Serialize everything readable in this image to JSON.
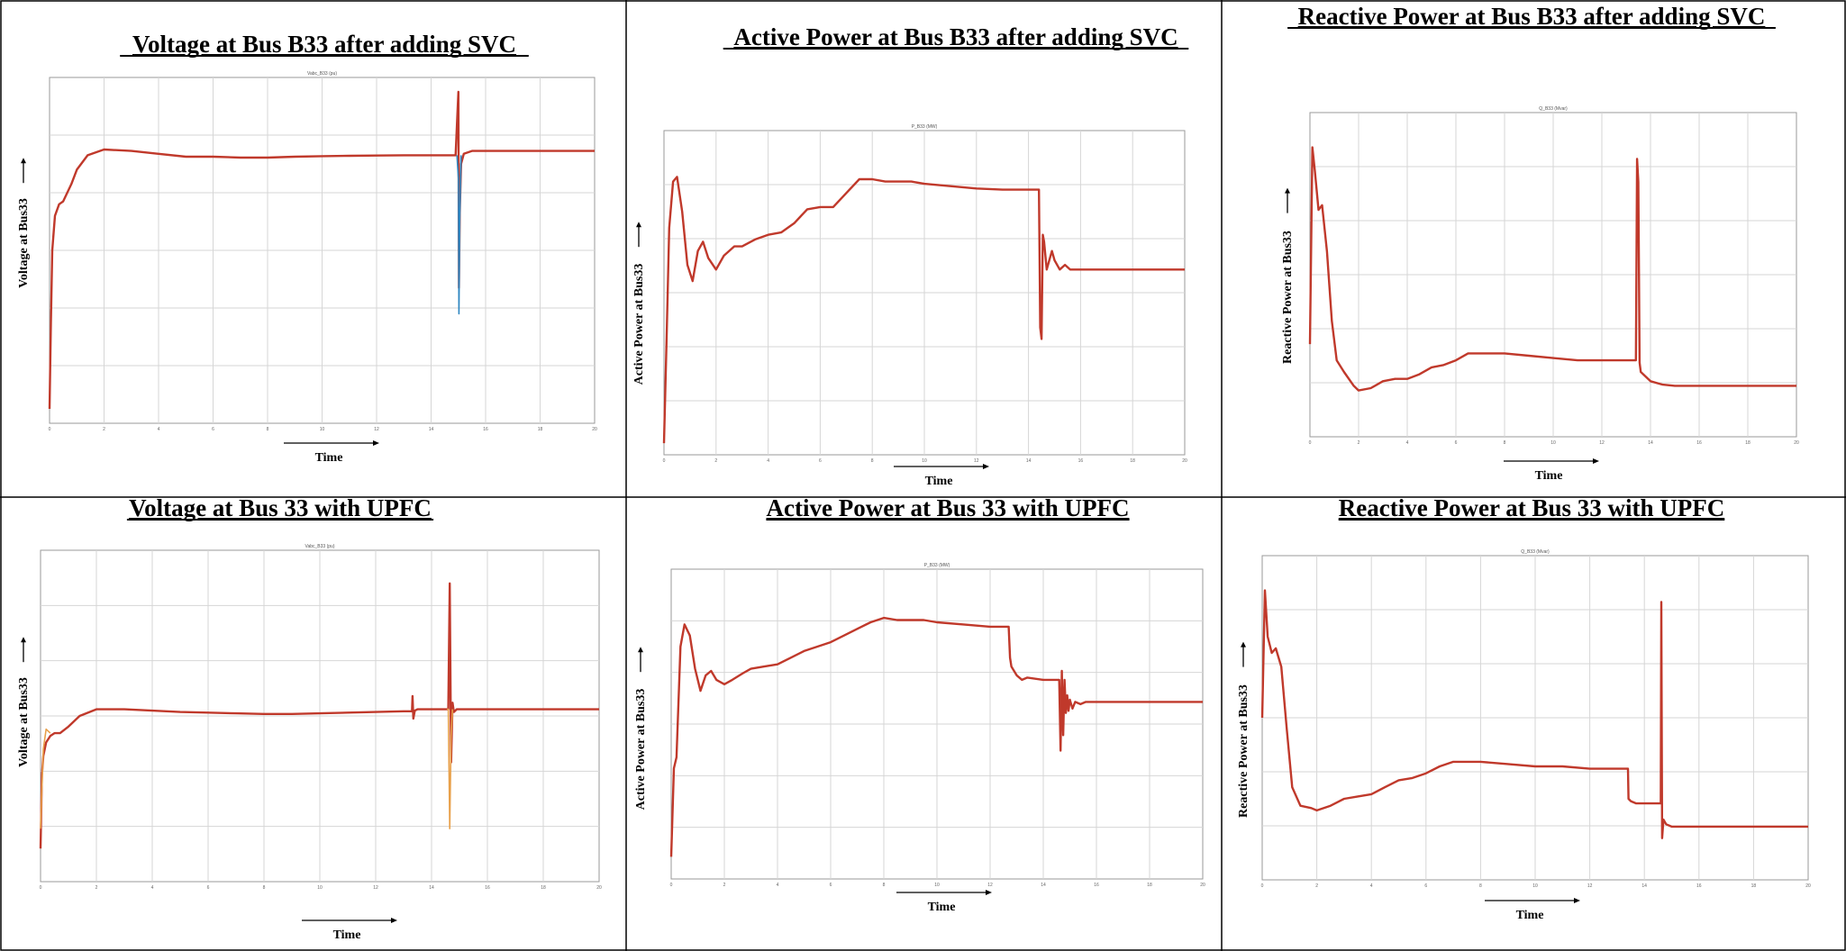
{
  "chart_data": [
    {
      "type": "line",
      "title": "Voltage at Bus B33  after adding SVC",
      "plot_tag": "Vabc_B33 (pu)",
      "xlabel": "Time",
      "ylabel": "Voltage at Bus33",
      "xlim": [
        0,
        20
      ],
      "ylim": [
        0,
        1.2
      ],
      "x_ticks": [
        "0",
        "2",
        "4",
        "6",
        "8",
        "10",
        "12",
        "14",
        "16",
        "18",
        "20"
      ],
      "grid": true,
      "series": [
        {
          "color": "#c0392b",
          "x": [
            0,
            0.05,
            0.1,
            0.2,
            0.35,
            0.5,
            0.8,
            1.0,
            1.4,
            2.0,
            3.0,
            4.0,
            5.0,
            6.0,
            7.0,
            8.0,
            9.0,
            10.0,
            11.0,
            12.0,
            13.0,
            14.0,
            14.9,
            15.0,
            15.02,
            15.05,
            15.1,
            15.2,
            15.5,
            16.0,
            17.0,
            18.0,
            19.0,
            20.0
          ],
          "y": [
            0.05,
            0.35,
            0.6,
            0.72,
            0.76,
            0.77,
            0.83,
            0.88,
            0.93,
            0.95,
            0.945,
            0.935,
            0.925,
            0.925,
            0.922,
            0.922,
            0.925,
            0.927,
            0.928,
            0.929,
            0.93,
            0.93,
            0.93,
            1.15,
            0.47,
            0.73,
            0.9,
            0.935,
            0.945,
            0.945,
            0.945,
            0.945,
            0.945,
            0.945
          ]
        },
        {
          "color": "#2e86c1",
          "x": [
            14.95,
            15.0,
            15.02,
            15.05,
            15.1
          ],
          "y": [
            0.93,
            0.85,
            0.38,
            0.7,
            0.93
          ]
        }
      ]
    },
    {
      "type": "line",
      "title": "Active Power at Bus B33  after adding SVC",
      "plot_tag": "P_B33 (MW)",
      "xlabel": "Time",
      "ylabel": "Active Power at Bus33",
      "xlim": [
        0,
        20
      ],
      "ylim": [
        -0.2,
        1.2
      ],
      "x_ticks": [
        "0",
        "2",
        "4",
        "6",
        "8",
        "10",
        "12",
        "14",
        "16",
        "18",
        "20"
      ],
      "grid": true,
      "series": [
        {
          "color": "#c0392b",
          "x": [
            0,
            0.1,
            0.2,
            0.35,
            0.5,
            0.7,
            0.9,
            1.1,
            1.3,
            1.5,
            1.7,
            2.0,
            2.3,
            2.7,
            3.0,
            3.5,
            4.0,
            4.5,
            5.0,
            5.5,
            6.0,
            6.5,
            7.0,
            7.5,
            8.0,
            8.5,
            9.0,
            9.5,
            10.0,
            11.0,
            12.0,
            13.0,
            14.0,
            14.4,
            14.45,
            14.5,
            14.55,
            14.6,
            14.7,
            14.8,
            14.9,
            15.0,
            15.2,
            15.4,
            15.6,
            16.0,
            17.0,
            18.0,
            19.0,
            20.0
          ],
          "y": [
            -0.15,
            0.3,
            0.78,
            0.98,
            1.0,
            0.85,
            0.62,
            0.55,
            0.68,
            0.72,
            0.65,
            0.6,
            0.66,
            0.7,
            0.7,
            0.73,
            0.75,
            0.76,
            0.8,
            0.86,
            0.87,
            0.87,
            0.93,
            0.99,
            0.99,
            0.98,
            0.98,
            0.98,
            0.97,
            0.96,
            0.95,
            0.945,
            0.945,
            0.945,
            0.35,
            0.3,
            0.75,
            0.72,
            0.6,
            0.64,
            0.68,
            0.64,
            0.6,
            0.62,
            0.6,
            0.6,
            0.6,
            0.6,
            0.6,
            0.6
          ]
        }
      ]
    },
    {
      "type": "line",
      "title": "Reactive Power at Bus B33  after adding SVC",
      "plot_tag": "Q_B33 (Mvar)",
      "xlabel": "Time",
      "ylabel": "Reactive Power at Bus33",
      "xlim": [
        0,
        20
      ],
      "ylim": [
        -0.2,
        1.2
      ],
      "x_ticks": [
        "0",
        "2",
        "4",
        "6",
        "8",
        "10",
        "12",
        "14",
        "16",
        "18",
        "20"
      ],
      "grid": true,
      "series": [
        {
          "color": "#c0392b",
          "x": [
            0,
            0.1,
            0.2,
            0.35,
            0.5,
            0.7,
            0.9,
            1.1,
            1.4,
            1.8,
            2.0,
            2.5,
            3.0,
            3.5,
            4.0,
            4.5,
            5.0,
            5.5,
            6.0,
            6.5,
            7.0,
            8.0,
            9.0,
            10.0,
            11.0,
            12.0,
            13.0,
            13.4,
            13.45,
            13.5,
            13.55,
            13.6,
            13.8,
            14.0,
            14.5,
            15.0,
            16.0,
            17.0,
            18.0,
            19.0,
            20.0
          ],
          "y": [
            0.2,
            1.05,
            0.95,
            0.78,
            0.8,
            0.6,
            0.3,
            0.13,
            0.08,
            0.02,
            0.0,
            0.01,
            0.04,
            0.05,
            0.05,
            0.07,
            0.1,
            0.11,
            0.13,
            0.16,
            0.16,
            0.16,
            0.15,
            0.14,
            0.13,
            0.13,
            0.13,
            0.13,
            1.0,
            0.9,
            0.12,
            0.08,
            0.06,
            0.04,
            0.025,
            0.02,
            0.02,
            0.02,
            0.02,
            0.02,
            0.02
          ]
        }
      ]
    },
    {
      "type": "line",
      "title": "Voltage at Bus 33 with UPFC",
      "plot_tag": "Vabc_B33 (pu)",
      "xlabel": "Time",
      "ylabel": "Voltage at Bus33",
      "xlim": [
        0,
        20
      ],
      "ylim": [
        0,
        2.5
      ],
      "x_ticks": [
        "0",
        "2",
        "4",
        "6",
        "8",
        "10",
        "12",
        "14",
        "16",
        "18",
        "20"
      ],
      "grid": true,
      "series": [
        {
          "color": "#c0392b",
          "x": [
            0,
            0.05,
            0.1,
            0.2,
            0.35,
            0.5,
            0.7,
            1.0,
            1.4,
            2.0,
            3.0,
            4.0,
            5.0,
            6.0,
            7.0,
            8.0,
            9.0,
            10.0,
            11.0,
            12.0,
            13.0,
            13.3,
            13.32,
            13.35,
            13.4,
            13.5,
            14.0,
            14.6,
            14.65,
            14.7,
            14.75,
            14.8,
            14.9,
            15.0,
            15.5,
            16.0,
            17.0,
            18.0,
            19.0,
            20.0
          ],
          "y": [
            0.25,
            0.8,
            0.95,
            1.05,
            1.1,
            1.12,
            1.12,
            1.17,
            1.25,
            1.3,
            1.3,
            1.29,
            1.28,
            1.275,
            1.27,
            1.265,
            1.265,
            1.27,
            1.275,
            1.28,
            1.285,
            1.285,
            1.4,
            1.23,
            1.29,
            1.3,
            1.3,
            1.3,
            2.25,
            0.9,
            1.35,
            1.28,
            1.3,
            1.3,
            1.3,
            1.3,
            1.3,
            1.3,
            1.3,
            1.3
          ]
        },
        {
          "color": "#e8a04a",
          "x": [
            0,
            0.05,
            0.1,
            0.2,
            0.35
          ],
          "y": [
            0.4,
            0.7,
            1.0,
            1.15,
            1.12
          ]
        },
        {
          "color": "#e8a04a",
          "x": [
            14.55,
            14.6,
            14.65,
            14.7,
            14.75
          ],
          "y": [
            1.3,
            1.3,
            0.4,
            1.1,
            1.3
          ]
        }
      ]
    },
    {
      "type": "line",
      "title": "Active Power at Bus 33 with UPFC",
      "plot_tag": "P_B33 (MW)",
      "xlabel": "Time",
      "ylabel": "Active Power at Bus33",
      "xlim": [
        0,
        20
      ],
      "ylim": [
        -0.2,
        1.2
      ],
      "x_ticks": [
        "0",
        "2",
        "4",
        "6",
        "8",
        "10",
        "12",
        "14",
        "16",
        "18",
        "20"
      ],
      "grid": true,
      "series": [
        {
          "color": "#c0392b",
          "x": [
            0,
            0.1,
            0.2,
            0.35,
            0.5,
            0.7,
            0.9,
            1.1,
            1.3,
            1.5,
            1.7,
            2.0,
            2.3,
            2.7,
            3.0,
            3.5,
            4.0,
            4.5,
            5.0,
            5.5,
            6.0,
            6.5,
            7.0,
            7.5,
            8.0,
            8.5,
            9.0,
            9.5,
            10.0,
            11.0,
            12.0,
            12.7,
            12.75,
            12.8,
            13.0,
            13.2,
            13.4,
            14.0,
            14.6,
            14.65,
            14.7,
            14.75,
            14.8,
            14.85,
            14.9,
            14.95,
            15.0,
            15.1,
            15.2,
            15.4,
            15.6,
            16.0,
            17.0,
            18.0,
            19.0,
            20.0
          ],
          "y": [
            -0.1,
            0.3,
            0.35,
            0.85,
            0.95,
            0.9,
            0.75,
            0.65,
            0.72,
            0.74,
            0.7,
            0.68,
            0.7,
            0.73,
            0.75,
            0.76,
            0.77,
            0.8,
            0.83,
            0.85,
            0.87,
            0.9,
            0.93,
            0.96,
            0.98,
            0.97,
            0.97,
            0.97,
            0.96,
            0.95,
            0.94,
            0.94,
            0.8,
            0.76,
            0.72,
            0.7,
            0.71,
            0.7,
            0.7,
            0.38,
            0.74,
            0.45,
            0.7,
            0.55,
            0.63,
            0.56,
            0.61,
            0.57,
            0.6,
            0.59,
            0.6,
            0.6,
            0.6,
            0.6,
            0.6,
            0.6
          ]
        }
      ]
    },
    {
      "type": "line",
      "title": "Reactive Power at Bus 33 with UPFC",
      "plot_tag": "Q_B33 (Mvar)",
      "xlabel": "Time",
      "ylabel": "Reactive Power at Bus33",
      "xlim": [
        0,
        20
      ],
      "ylim": [
        -0.2,
        1.2
      ],
      "x_ticks": [
        "0",
        "2",
        "4",
        "6",
        "8",
        "10",
        "12",
        "14",
        "16",
        "18",
        "20"
      ],
      "grid": true,
      "series": [
        {
          "color": "#c0392b",
          "x": [
            0,
            0.1,
            0.2,
            0.35,
            0.5,
            0.7,
            0.9,
            1.1,
            1.4,
            1.8,
            2.0,
            2.5,
            3.0,
            3.5,
            4.0,
            4.5,
            5.0,
            5.5,
            6.0,
            6.5,
            7.0,
            8.0,
            9.0,
            10.0,
            11.0,
            12.0,
            13.0,
            13.4,
            13.42,
            13.5,
            13.7,
            14.0,
            14.5,
            14.6,
            14.62,
            14.65,
            14.7,
            14.8,
            15.0,
            16.0,
            17.0,
            18.0,
            19.0,
            20.0
          ],
          "y": [
            0.5,
            1.05,
            0.85,
            0.78,
            0.8,
            0.72,
            0.45,
            0.2,
            0.12,
            0.11,
            0.1,
            0.12,
            0.15,
            0.16,
            0.17,
            0.2,
            0.23,
            0.24,
            0.26,
            0.29,
            0.31,
            0.31,
            0.3,
            0.29,
            0.29,
            0.28,
            0.28,
            0.28,
            0.15,
            0.14,
            0.13,
            0.13,
            0.13,
            0.13,
            1.0,
            -0.02,
            0.06,
            0.04,
            0.03,
            0.03,
            0.03,
            0.03,
            0.03,
            0.03
          ]
        }
      ]
    }
  ]
}
